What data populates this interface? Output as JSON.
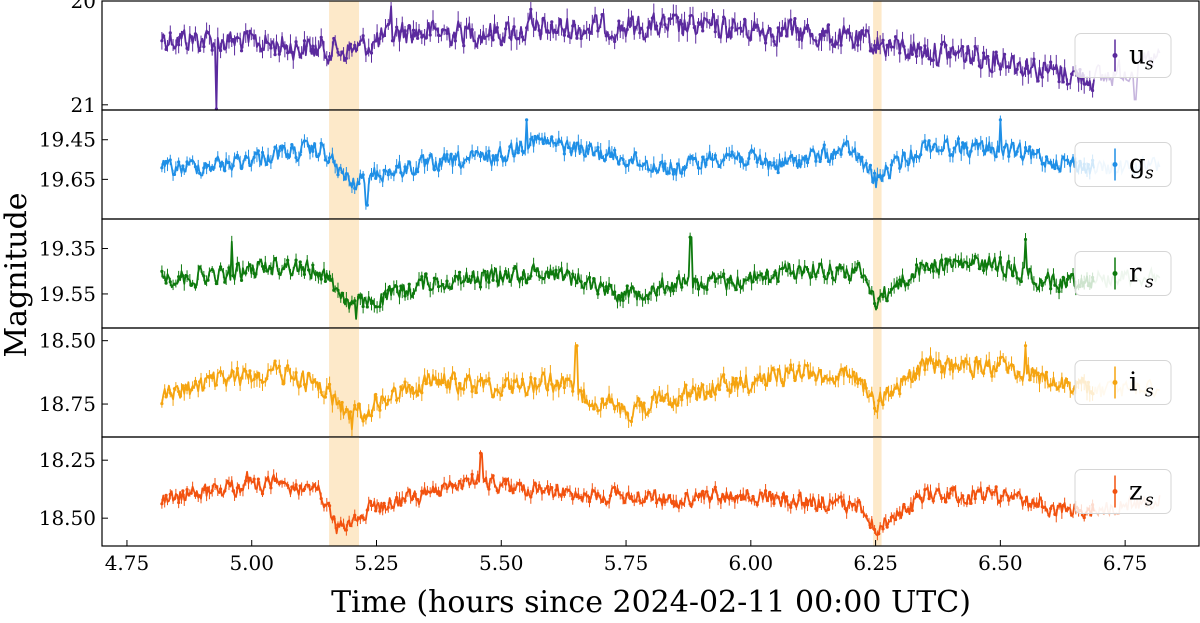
{
  "chart_data": {
    "type": "line",
    "xlabel": "Time (hours since 2024-02-11 00:00 UTC)",
    "ylabel": "Magnitude",
    "xlim": [
      4.7,
      6.9
    ],
    "xticks": [
      "4.75",
      "5.00",
      "5.25",
      "5.50",
      "5.75",
      "6.00",
      "6.25",
      "6.50",
      "6.75"
    ],
    "y_inverted": true,
    "shaded_intervals": [
      [
        5.155,
        5.215
      ],
      [
        6.245,
        6.262
      ]
    ],
    "shade_color": "#fde9c9",
    "legend_placement": "right",
    "panels": [
      {
        "band": "u",
        "sub": "s",
        "color": "#5b2a9e",
        "ylim": [
          20.0,
          21.05
        ],
        "yticks": [
          20.0,
          21.0
        ],
        "ytick_labels": [
          "20",
          "21"
        ],
        "x_end": 6.82,
        "faded_after": 6.69,
        "knots": [
          [
            4.82,
            20.35
          ],
          [
            5.0,
            20.4
          ],
          [
            5.1,
            20.45
          ],
          [
            5.2,
            20.48
          ],
          [
            5.3,
            20.3
          ],
          [
            5.5,
            20.3
          ],
          [
            5.7,
            20.25
          ],
          [
            5.9,
            20.25
          ],
          [
            6.1,
            20.3
          ],
          [
            6.3,
            20.45
          ],
          [
            6.5,
            20.55
          ],
          [
            6.6,
            20.68
          ],
          [
            6.7,
            20.75
          ],
          [
            6.82,
            20.55
          ]
        ],
        "noise": 0.12,
        "spikes": [
          [
            4.93,
            21.55
          ],
          [
            5.28,
            20.05
          ],
          [
            5.56,
            20.08
          ],
          [
            6.77,
            20.95
          ]
        ]
      },
      {
        "band": "g",
        "sub": "s",
        "color": "#1f8fe6",
        "ylim": [
          19.3,
          19.85
        ],
        "yticks": [
          19.45,
          19.65
        ],
        "ytick_labels": [
          "19.45",
          "19.65"
        ],
        "x_end": 6.82,
        "faded_after": 6.69,
        "knots": [
          [
            4.82,
            19.6
          ],
          [
            4.95,
            19.57
          ],
          [
            5.05,
            19.52
          ],
          [
            5.14,
            19.5
          ],
          [
            5.2,
            19.68
          ],
          [
            5.25,
            19.62
          ],
          [
            5.35,
            19.58
          ],
          [
            5.5,
            19.53
          ],
          [
            5.56,
            19.45
          ],
          [
            5.7,
            19.52
          ],
          [
            5.85,
            19.6
          ],
          [
            5.95,
            19.52
          ],
          [
            6.05,
            19.58
          ],
          [
            6.2,
            19.5
          ],
          [
            6.25,
            19.65
          ],
          [
            6.35,
            19.48
          ],
          [
            6.5,
            19.5
          ],
          [
            6.6,
            19.55
          ],
          [
            6.7,
            19.6
          ],
          [
            6.82,
            19.58
          ]
        ],
        "noise": 0.045,
        "spikes": [
          [
            5.23,
            19.78
          ],
          [
            5.55,
            19.35
          ],
          [
            6.5,
            19.35
          ],
          [
            6.25,
            19.69
          ]
        ]
      },
      {
        "band": "r",
        "sub": "s",
        "color": "#0e7a0e",
        "ylim": [
          19.22,
          19.7
        ],
        "yticks": [
          19.35,
          19.55
        ],
        "ytick_labels": [
          "19.35",
          "19.55"
        ],
        "x_end": 6.82,
        "faded_after": 6.69,
        "knots": [
          [
            4.82,
            19.48
          ],
          [
            4.95,
            19.47
          ],
          [
            5.05,
            19.42
          ],
          [
            5.14,
            19.45
          ],
          [
            5.2,
            19.6
          ],
          [
            5.25,
            19.58
          ],
          [
            5.35,
            19.5
          ],
          [
            5.5,
            19.47
          ],
          [
            5.6,
            19.45
          ],
          [
            5.75,
            19.55
          ],
          [
            5.85,
            19.5
          ],
          [
            5.95,
            19.5
          ],
          [
            6.1,
            19.44
          ],
          [
            6.22,
            19.45
          ],
          [
            6.25,
            19.58
          ],
          [
            6.35,
            19.42
          ],
          [
            6.5,
            19.42
          ],
          [
            6.6,
            19.5
          ],
          [
            6.7,
            19.48
          ],
          [
            6.82,
            19.47
          ]
        ],
        "noise": 0.04,
        "spikes": [
          [
            4.96,
            19.32
          ],
          [
            5.88,
            19.3
          ],
          [
            6.55,
            19.31
          ],
          [
            5.21,
            19.66
          ]
        ]
      },
      {
        "band": "i",
        "sub": "s",
        "color": "#f5a410",
        "ylim": [
          18.45,
          18.88
        ],
        "yticks": [
          18.5,
          18.75
        ],
        "ytick_labels": [
          "18.50",
          "18.75"
        ],
        "x_end": 6.82,
        "faded_after": 6.69,
        "knots": [
          [
            4.82,
            18.72
          ],
          [
            4.95,
            18.65
          ],
          [
            5.05,
            18.62
          ],
          [
            5.14,
            18.68
          ],
          [
            5.2,
            18.8
          ],
          [
            5.25,
            18.75
          ],
          [
            5.35,
            18.66
          ],
          [
            5.5,
            18.68
          ],
          [
            5.6,
            18.66
          ],
          [
            5.75,
            18.78
          ],
          [
            5.85,
            18.72
          ],
          [
            5.95,
            18.68
          ],
          [
            6.1,
            18.62
          ],
          [
            6.22,
            18.65
          ],
          [
            6.25,
            18.74
          ],
          [
            6.35,
            18.6
          ],
          [
            6.5,
            18.6
          ],
          [
            6.6,
            18.66
          ],
          [
            6.7,
            18.7
          ],
          [
            6.82,
            18.68
          ]
        ],
        "noise": 0.04,
        "spikes": [
          [
            5.65,
            18.52
          ],
          [
            5.2,
            18.85
          ],
          [
            6.55,
            18.52
          ],
          [
            6.25,
            18.78
          ]
        ]
      },
      {
        "band": "z",
        "sub": "s",
        "color": "#f2520f",
        "ylim": [
          18.15,
          18.62
        ],
        "yticks": [
          18.25,
          18.5
        ],
        "ytick_labels": [
          "18.25",
          "18.50"
        ],
        "x_end": 6.82,
        "faded_after": 6.69,
        "knots": [
          [
            4.82,
            18.42
          ],
          [
            4.95,
            18.37
          ],
          [
            5.05,
            18.35
          ],
          [
            5.14,
            18.4
          ],
          [
            5.17,
            18.55
          ],
          [
            5.25,
            18.45
          ],
          [
            5.35,
            18.4
          ],
          [
            5.45,
            18.33
          ],
          [
            5.55,
            18.38
          ],
          [
            5.7,
            18.4
          ],
          [
            5.85,
            18.42
          ],
          [
            5.95,
            18.4
          ],
          [
            6.1,
            18.43
          ],
          [
            6.22,
            18.45
          ],
          [
            6.25,
            18.55
          ],
          [
            6.35,
            18.4
          ],
          [
            6.5,
            18.4
          ],
          [
            6.6,
            18.46
          ],
          [
            6.7,
            18.46
          ],
          [
            6.82,
            18.42
          ]
        ],
        "noise": 0.035,
        "spikes": [
          [
            4.99,
            18.3
          ],
          [
            5.46,
            18.22
          ],
          [
            6.25,
            18.57
          ]
        ]
      }
    ]
  }
}
